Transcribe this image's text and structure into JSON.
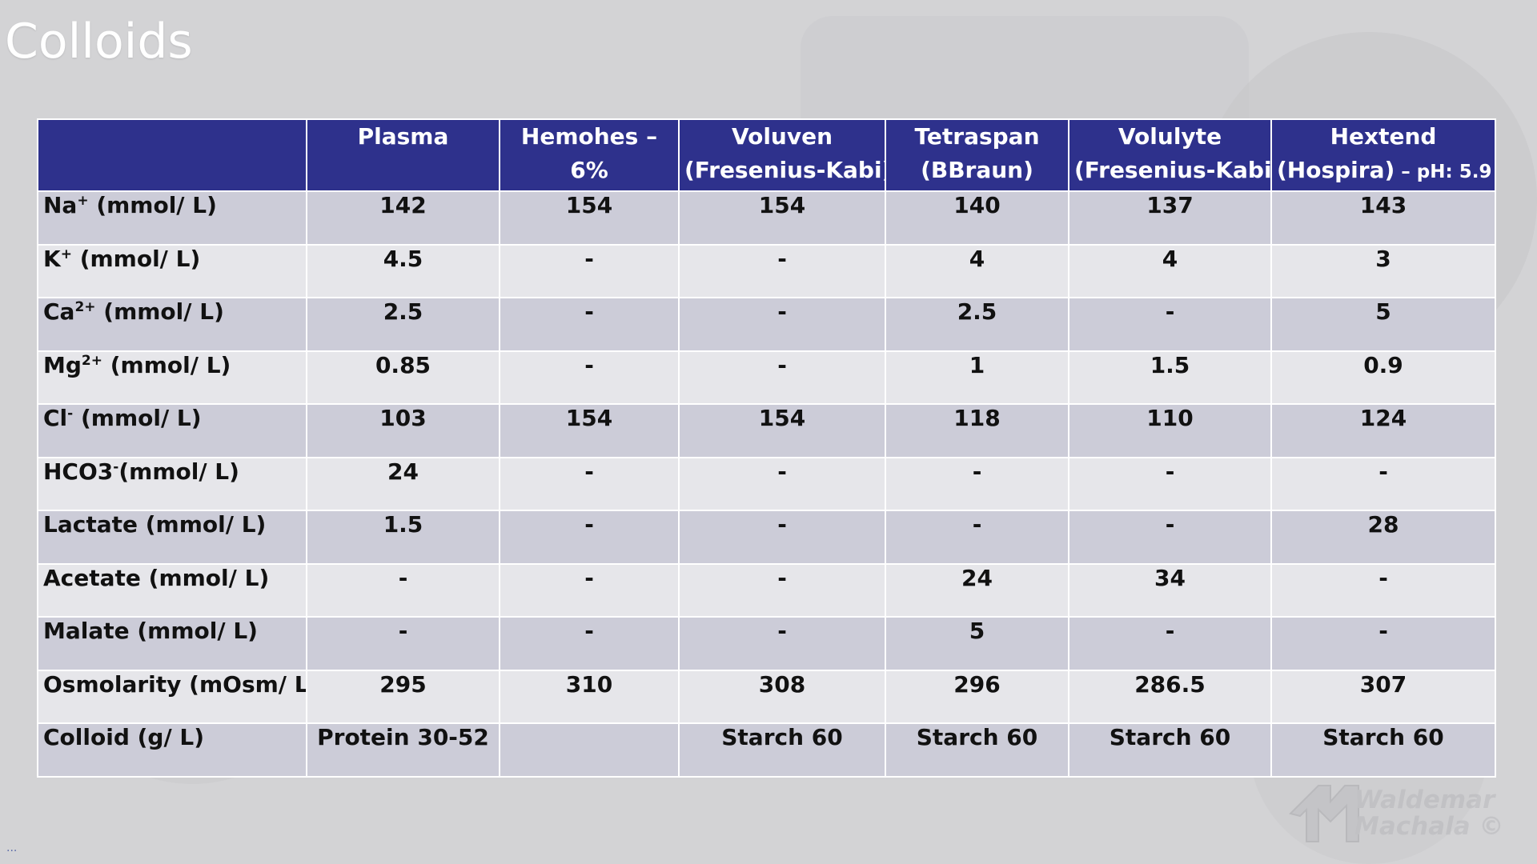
{
  "title": "Colloids",
  "table": {
    "header": [
      "",
      "Plasma",
      "Hemohes –\n6%",
      "Voluven\n(Fresenius-Kabi)",
      "Tetraspan\n(BBraun)",
      "Volulyte\n(Fresenius-Kabi)",
      "Hextend\n(Hospira)"
    ],
    "header_note": "– pH: 5.9",
    "row_labels": [
      {
        "base": "Na",
        "sup": "+",
        "unit": " (mmol/ L)"
      },
      {
        "base": "K",
        "sup": "+",
        "unit": " (mmol/ L)"
      },
      {
        "base": "Ca",
        "sup": "2+",
        "unit": " (mmol/ L)"
      },
      {
        "base": "Mg",
        "sup": "2+",
        "unit": " (mmol/ L)"
      },
      {
        "base": "Cl",
        "sup": "-",
        "unit": " (mmol/ L)"
      },
      {
        "base": "HCO3",
        "sup": "-",
        "unit": "(mmol/ L)"
      },
      {
        "base": "Lactate (mmol/ L)",
        "sup": "",
        "unit": ""
      },
      {
        "base": "Acetate (mmol/ L)",
        "sup": "",
        "unit": ""
      },
      {
        "base": "Malate (mmol/ L)",
        "sup": "",
        "unit": ""
      },
      {
        "base": "Osmolarity (mOsm/ L)",
        "sup": "",
        "unit": ""
      },
      {
        "base": "Colloid (g/ L)",
        "sup": "",
        "unit": ""
      }
    ],
    "rows": [
      [
        "142",
        "154",
        "154",
        "140",
        "137",
        "143"
      ],
      [
        "4.5",
        "-",
        "-",
        "4",
        "4",
        "3"
      ],
      [
        "2.5",
        "-",
        "-",
        "2.5",
        "-",
        "5"
      ],
      [
        "0.85",
        "-",
        "-",
        "1",
        "1.5",
        "0.9"
      ],
      [
        "103",
        "154",
        "154",
        "118",
        "110",
        "124"
      ],
      [
        "24",
        "-",
        "-",
        "-",
        "-",
        "-"
      ],
      [
        "1.5",
        "-",
        "-",
        "-",
        "-",
        "28"
      ],
      [
        "-",
        "-",
        "-",
        "24",
        "34",
        "-"
      ],
      [
        "-",
        "-",
        "-",
        "5",
        "-",
        "-"
      ],
      [
        "295",
        "310",
        "308",
        "296",
        "286.5",
        "307"
      ],
      [
        "Protein 30-52",
        "",
        "Starch 60",
        "Starch 60",
        "Starch 60",
        "Starch 60"
      ]
    ]
  },
  "watermark": {
    "line1": "Waldemar",
    "line2": "Machala ©"
  },
  "footer_ellipsis": "..."
}
